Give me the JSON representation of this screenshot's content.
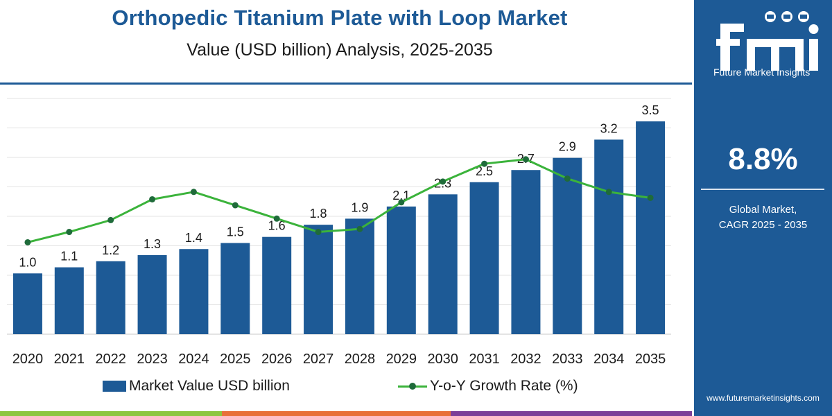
{
  "title": "Orthopedic Titanium Plate with Loop Market",
  "subtitle": "Value (USD billion) Analysis, 2025-2035",
  "colors": {
    "bar": "#1d5a96",
    "line": "#3bb33b",
    "marker": "#1f6b3a",
    "panel": "#1d5a96",
    "strip": [
      "#8dc63f",
      "#e8703a",
      "#7b3f98"
    ]
  },
  "chart_data": {
    "type": "bar",
    "categories": [
      "2020",
      "2021",
      "2022",
      "2023",
      "2024",
      "2025",
      "2026",
      "2027",
      "2028",
      "2029",
      "2030",
      "2031",
      "2032",
      "2033",
      "2034",
      "2035"
    ],
    "series": [
      {
        "name": "Market Value USD billion",
        "type": "bar",
        "values": [
          1.0,
          1.1,
          1.2,
          1.3,
          1.4,
          1.5,
          1.6,
          1.8,
          1.9,
          2.1,
          2.3,
          2.5,
          2.7,
          2.9,
          3.2,
          3.5
        ],
        "labels": [
          "1.0",
          "1.1",
          "1.2",
          "1.3",
          "1.4",
          "1.5",
          "1.6",
          "1.8",
          "1.9",
          "2.1",
          "2.3",
          "2.5",
          "2.7",
          "2.9",
          "3.2",
          "3.5"
        ]
      },
      {
        "name": "Y-o-Y Growth Rate (%)",
        "type": "line",
        "values": [
          6.2,
          6.9,
          7.7,
          9.1,
          9.6,
          8.7,
          7.8,
          6.9,
          7.1,
          8.9,
          10.3,
          11.5,
          11.8,
          10.5,
          9.6,
          9.2
        ]
      }
    ],
    "ylim": [
      0,
      3.9
    ],
    "y2lim": [
      0,
      16
    ],
    "grid": true,
    "legend_position": "bottom"
  },
  "legend": {
    "bar_label": "Market Value USD billion",
    "line_label": "Y-o-Y Growth Rate (%)"
  },
  "panel": {
    "logo_text": "Future Market Insights",
    "cagr": "8.8%",
    "cagr_label_line1": "Global Market,",
    "cagr_label_line2": "CAGR 2025 - 2035",
    "url": "www.futuremarketinsights.com"
  }
}
